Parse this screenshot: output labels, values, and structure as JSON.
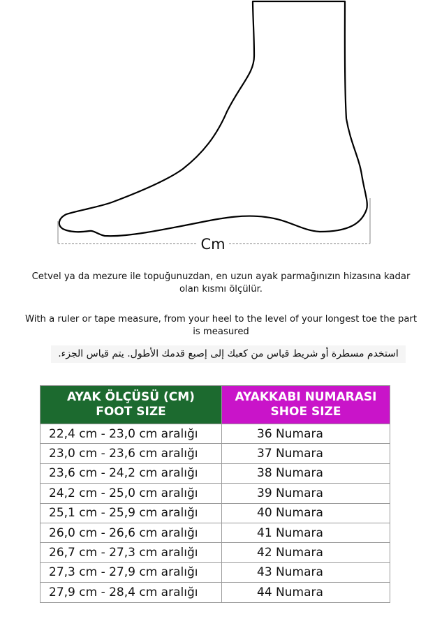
{
  "diagram": {
    "measure_label": "Cm"
  },
  "instructions": {
    "turkish": "Cetvel ya da mezure ile topuğunuzdan, en uzun ayak parmağınızın hizasına kadar olan kısmı ölçülür.",
    "english": "With a ruler or tape measure, from your heel to the level of your longest toe the part is measured",
    "arabic": "استخدم مسطرة أو شريط قياس من كعبك إلى إصبع قدمك الأطول. يتم قياس الجزء."
  },
  "table": {
    "header_colors": {
      "foot": "#1c6a2f",
      "shoe": "#c914c9"
    },
    "headers": [
      {
        "line1": "AYAK ÖLÇÜSÜ (CM)",
        "line2": "FOOT SIZE"
      },
      {
        "line1": "AYAKKABI NUMARASI",
        "line2": "SHOE SIZE"
      }
    ],
    "rows": [
      {
        "foot": "22,4 cm - 23,0 cm aralığı",
        "shoe": "36 Numara"
      },
      {
        "foot": "23,0 cm - 23,6 cm aralığı",
        "shoe": "37 Numara"
      },
      {
        "foot": "23,6 cm - 24,2 cm aralığı",
        "shoe": "38 Numara"
      },
      {
        "foot": "24,2 cm - 25,0 cm aralığı",
        "shoe": "39 Numara"
      },
      {
        "foot": "25,1 cm - 25,9 cm aralığı",
        "shoe": "40 Numara"
      },
      {
        "foot": "26,0 cm - 26,6 cm aralığı",
        "shoe": "41 Numara"
      },
      {
        "foot": "26,7 cm - 27,3 cm aralığı",
        "shoe": "42 Numara"
      },
      {
        "foot": "27,3 cm - 27,9 cm aralığı",
        "shoe": "43 Numara"
      },
      {
        "foot": "27,9 cm - 28,4 cm aralığı",
        "shoe": "44 Numara"
      }
    ]
  }
}
